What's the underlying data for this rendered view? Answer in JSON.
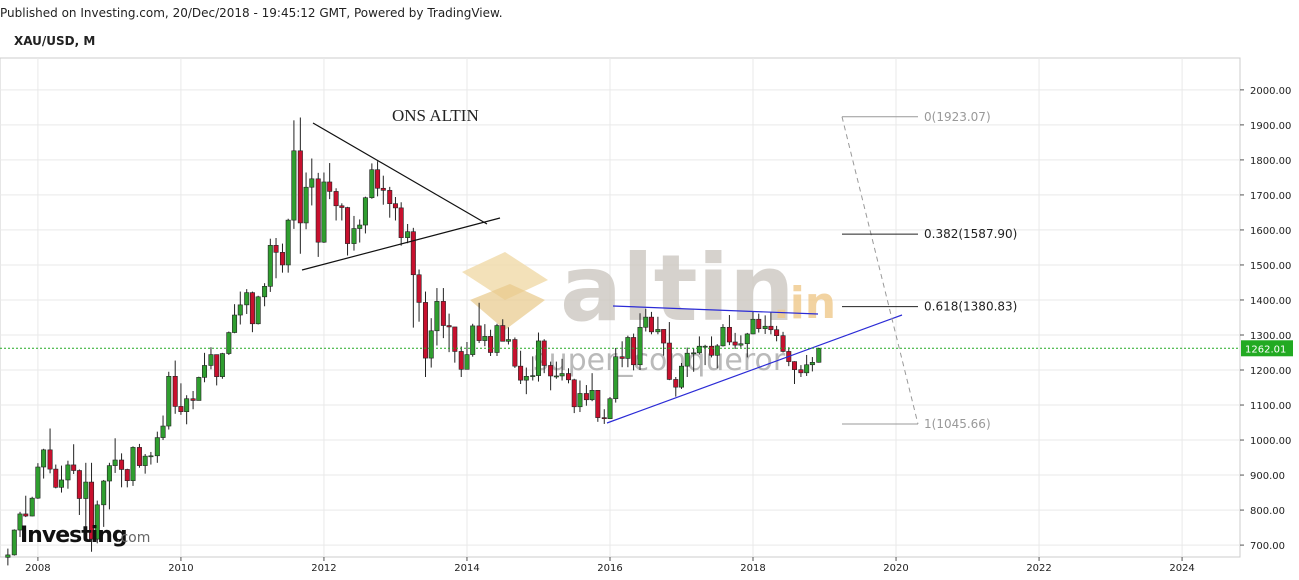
{
  "chart_data": {
    "type": "candlestick",
    "source": "Published on Investing.com, 20/Dec/2018 - 19:45:12 GMT, Powered by TradingView.",
    "title": "XAU/USD, M",
    "annotation": "ONS ALTIN",
    "watermark": {
      "logo": "altin",
      "logo_suffix": ".in",
      "user": "super_conqueror",
      "brand": "Investing",
      "brand_suffix": ".com"
    },
    "up_color": "#2f9e2f",
    "down_color": "#c8102e",
    "xlim": [
      2007.47,
      2024.81
    ],
    "xticks": [
      2008,
      2010,
      2012,
      2014,
      2016,
      2018,
      2020,
      2022,
      2024
    ],
    "ylim": [
      666,
      2091
    ],
    "yticks": [
      {
        "value": 700,
        "label": "700.00"
      },
      {
        "value": 800,
        "label": "800.00"
      },
      {
        "value": 900,
        "label": "900.00"
      },
      {
        "value": 1000,
        "label": "1000.00"
      },
      {
        "value": 1100,
        "label": "1100.00"
      },
      {
        "value": 1200,
        "label": "1200.00"
      },
      {
        "value": 1300,
        "label": "1300.00"
      },
      {
        "value": 1400,
        "label": "1400.00"
      },
      {
        "value": 1500,
        "label": "1500.00"
      },
      {
        "value": 1600,
        "label": "1600.00"
      },
      {
        "value": 1700,
        "label": "1700.00"
      },
      {
        "value": 1800,
        "label": "1800.00"
      },
      {
        "value": 1900,
        "label": "1900.00"
      },
      {
        "value": 2000,
        "label": "2000.00"
      }
    ],
    "grid": true,
    "price_line": 1262.01,
    "fib_levels": [
      {
        "value": 1923.07,
        "label": "0(1923.07)",
        "color": "#999999"
      },
      {
        "value": 1587.9,
        "label": "0.382(1587.90)",
        "color": "#222222"
      },
      {
        "value": 1380.83,
        "label": "0.618(1380.83)",
        "color": "#222222"
      },
      {
        "value": 1045.66,
        "label": "1(1045.66)",
        "color": "#999999"
      }
    ],
    "x": [
      2007.58,
      2007.67,
      2007.75,
      2007.83,
      2007.92,
      2008.0,
      2008.08,
      2008.17,
      2008.25,
      2008.33,
      2008.42,
      2008.5,
      2008.58,
      2008.67,
      2008.75,
      2008.83,
      2008.92,
      2009.0,
      2009.08,
      2009.17,
      2009.25,
      2009.33,
      2009.42,
      2009.5,
      2009.58,
      2009.67,
      2009.75,
      2009.83,
      2009.92,
      2010.0,
      2010.08,
      2010.17,
      2010.25,
      2010.33,
      2010.42,
      2010.5,
      2010.58,
      2010.67,
      2010.75,
      2010.83,
      2010.92,
      2011.0,
      2011.08,
      2011.17,
      2011.25,
      2011.33,
      2011.42,
      2011.5,
      2011.58,
      2011.67,
      2011.75,
      2011.83,
      2011.92,
      2012.0,
      2012.08,
      2012.17,
      2012.25,
      2012.33,
      2012.42,
      2012.5,
      2012.58,
      2012.67,
      2012.75,
      2012.83,
      2012.92,
      2013.0,
      2013.08,
      2013.17,
      2013.25,
      2013.33,
      2013.42,
      2013.5,
      2013.58,
      2013.67,
      2013.75,
      2013.83,
      2013.92,
      2014.0,
      2014.08,
      2014.17,
      2014.25,
      2014.33,
      2014.42,
      2014.5,
      2014.58,
      2014.67,
      2014.75,
      2014.83,
      2014.92,
      2015.0,
      2015.08,
      2015.17,
      2015.25,
      2015.33,
      2015.42,
      2015.5,
      2015.58,
      2015.67,
      2015.75,
      2015.83,
      2015.92,
      2016.0,
      2016.08,
      2016.17,
      2016.25,
      2016.33,
      2016.42,
      2016.5,
      2016.58,
      2016.67,
      2016.75,
      2016.83,
      2016.92,
      2017.0,
      2017.08,
      2017.17,
      2017.25,
      2017.33,
      2017.42,
      2017.5,
      2017.58,
      2017.67,
      2017.75,
      2017.83,
      2017.92,
      2018.0,
      2018.08,
      2018.17,
      2018.25,
      2018.33,
      2018.42,
      2018.5,
      2018.58,
      2018.67,
      2018.75,
      2018.83,
      2018.92
    ],
    "open": [
      665,
      672,
      743,
      789,
      783,
      834,
      923,
      972,
      917,
      865,
      886,
      929,
      913,
      833,
      880,
      717,
      815,
      883,
      927,
      943,
      916,
      884,
      979,
      927,
      954,
      955,
      1007,
      1040,
      1182,
      1096,
      1081,
      1118,
      1113,
      1179,
      1213,
      1244,
      1181,
      1247,
      1307,
      1357,
      1386,
      1421,
      1332,
      1409,
      1439,
      1556,
      1536,
      1500,
      1628,
      1826,
      1620,
      1722,
      1746,
      1565,
      1737,
      1710,
      1669,
      1664,
      1561,
      1604,
      1614,
      1692,
      1772,
      1719,
      1713,
      1675,
      1663,
      1578,
      1595,
      1472,
      1393,
      1234,
      1312,
      1396,
      1327,
      1323,
      1253,
      1202,
      1244,
      1326,
      1284,
      1296,
      1250,
      1327,
      1282,
      1287,
      1211,
      1171,
      1182,
      1184,
      1283,
      1213,
      1183,
      1183,
      1190,
      1172,
      1095,
      1133,
      1115,
      1142,
      1064,
      1061,
      1118,
      1238,
      1233,
      1293,
      1215,
      1322,
      1351,
      1309,
      1316,
      1277,
      1173,
      1151,
      1211,
      1248,
      1249,
      1268,
      1268,
      1242,
      1269,
      1322,
      1280,
      1271,
      1275,
      1303,
      1345,
      1318,
      1325,
      1315,
      1298,
      1253,
      1224,
      1201,
      1192,
      1215,
      1222
    ],
    "high": [
      690,
      745,
      795,
      841,
      838,
      934,
      975,
      1033,
      930,
      927,
      941,
      988,
      916,
      935,
      935,
      827,
      886,
      935,
      1005,
      962,
      918,
      982,
      989,
      960,
      966,
      1024,
      1070,
      1195,
      1227,
      1162,
      1128,
      1140,
      1181,
      1249,
      1265,
      1244,
      1249,
      1310,
      1388,
      1424,
      1431,
      1424,
      1412,
      1448,
      1575,
      1577,
      1561,
      1632,
      1913,
      1921,
      1764,
      1804,
      1763,
      1764,
      1791,
      1719,
      1676,
      1666,
      1640,
      1630,
      1695,
      1790,
      1796,
      1755,
      1723,
      1694,
      1679,
      1617,
      1606,
      1487,
      1424,
      1348,
      1434,
      1434,
      1361,
      1323,
      1267,
      1280,
      1332,
      1392,
      1331,
      1315,
      1332,
      1345,
      1322,
      1293,
      1255,
      1207,
      1239,
      1307,
      1288,
      1224,
      1224,
      1232,
      1205,
      1175,
      1170,
      1157,
      1191,
      1142,
      1088,
      1123,
      1263,
      1282,
      1298,
      1304,
      1362,
      1375,
      1366,
      1352,
      1316,
      1337,
      1180,
      1220,
      1264,
      1262,
      1296,
      1272,
      1296,
      1274,
      1331,
      1357,
      1306,
      1299,
      1306,
      1366,
      1361,
      1356,
      1365,
      1326,
      1309,
      1265,
      1225,
      1214,
      1243,
      1237,
      1264
    ],
    "low": [
      642,
      670,
      723,
      780,
      782,
      832,
      890,
      905,
      862,
      850,
      861,
      903,
      786,
      740,
      681,
      705,
      752,
      802,
      906,
      865,
      865,
      869,
      921,
      904,
      930,
      935,
      1000,
      1030,
      1075,
      1072,
      1045,
      1088,
      1113,
      1165,
      1202,
      1156,
      1175,
      1243,
      1305,
      1330,
      1360,
      1308,
      1330,
      1382,
      1423,
      1462,
      1478,
      1478,
      1603,
      1532,
      1602,
      1670,
      1523,
      1563,
      1688,
      1627,
      1627,
      1527,
      1541,
      1564,
      1590,
      1689,
      1696,
      1672,
      1635,
      1627,
      1555,
      1562,
      1321,
      1338,
      1180,
      1207,
      1270,
      1291,
      1251,
      1221,
      1180,
      1202,
      1238,
      1277,
      1268,
      1240,
      1240,
      1282,
      1273,
      1206,
      1160,
      1131,
      1170,
      1167,
      1191,
      1142,
      1175,
      1170,
      1162,
      1077,
      1080,
      1098,
      1111,
      1052,
      1046,
      1061,
      1107,
      1208,
      1208,
      1199,
      1200,
      1310,
      1302,
      1302,
      1241,
      1171,
      1124,
      1146,
      1180,
      1195,
      1244,
      1214,
      1236,
      1205,
      1267,
      1271,
      1260,
      1264,
      1236,
      1302,
      1307,
      1303,
      1302,
      1282,
      1250,
      1211,
      1160,
      1180,
      1183,
      1196,
      1221
    ],
    "close": [
      672,
      743,
      789,
      783,
      834,
      923,
      972,
      917,
      865,
      886,
      929,
      913,
      833,
      880,
      717,
      815,
      883,
      927,
      943,
      916,
      884,
      979,
      927,
      954,
      955,
      1007,
      1040,
      1182,
      1096,
      1081,
      1118,
      1113,
      1179,
      1213,
      1244,
      1181,
      1247,
      1307,
      1357,
      1386,
      1421,
      1332,
      1409,
      1439,
      1556,
      1536,
      1500,
      1628,
      1826,
      1620,
      1722,
      1746,
      1565,
      1737,
      1710,
      1669,
      1664,
      1561,
      1604,
      1614,
      1692,
      1772,
      1719,
      1713,
      1675,
      1663,
      1578,
      1595,
      1472,
      1393,
      1234,
      1312,
      1396,
      1327,
      1323,
      1253,
      1202,
      1244,
      1326,
      1284,
      1296,
      1250,
      1327,
      1282,
      1287,
      1211,
      1171,
      1182,
      1184,
      1283,
      1213,
      1183,
      1183,
      1190,
      1172,
      1095,
      1133,
      1115,
      1142,
      1064,
      1061,
      1118,
      1238,
      1233,
      1293,
      1215,
      1322,
      1351,
      1309,
      1316,
      1277,
      1173,
      1151,
      1211,
      1248,
      1249,
      1268,
      1268,
      1242,
      1269,
      1322,
      1280,
      1271,
      1275,
      1303,
      1345,
      1318,
      1325,
      1315,
      1298,
      1253,
      1224,
      1201,
      1192,
      1215,
      1222,
      1262
    ]
  }
}
